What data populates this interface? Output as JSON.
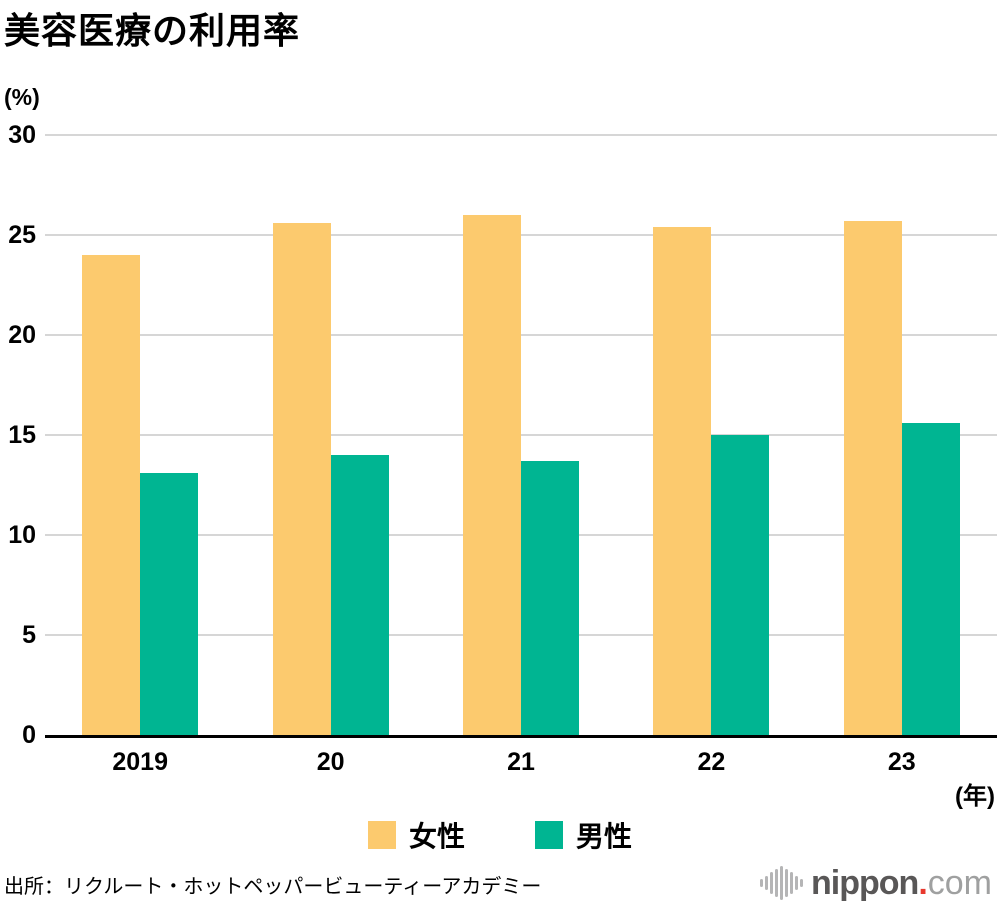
{
  "title": "美容医療の利用率",
  "y_axis_unit": "(%)",
  "x_axis_unit": "(年)",
  "source": "出所：リクルート・ホットペッパービューティーアカデミー",
  "logo": {
    "icon": "waveform-icon",
    "name": "nippon",
    "dot": ".",
    "tld": "com"
  },
  "colors": {
    "female_bar": "#FCCA6E",
    "male_bar": "#00B592",
    "gridline": "#d6d6d6",
    "axis": "#000000",
    "logo_gray": "#595757",
    "logo_light_gray": "#9fa0a0",
    "logo_red": "#e8382d"
  },
  "chart_data": {
    "type": "bar",
    "categories": [
      "2019",
      "20",
      "21",
      "22",
      "23"
    ],
    "series": [
      {
        "name": "女性",
        "color": "#FCCA6E",
        "values": [
          24.0,
          25.6,
          26.0,
          25.4,
          25.7
        ]
      },
      {
        "name": "男性",
        "color": "#00B592",
        "values": [
          13.1,
          14.0,
          13.7,
          15.0,
          15.6
        ]
      }
    ],
    "title": "美容医療の利用率",
    "xlabel": "(年)",
    "ylabel": "(%)",
    "ylim": [
      0,
      30
    ],
    "ytick_step": 5,
    "yticks": [
      "30",
      "25",
      "20",
      "15",
      "10",
      "5",
      "0"
    ],
    "grid": true,
    "legend_position": "bottom"
  }
}
